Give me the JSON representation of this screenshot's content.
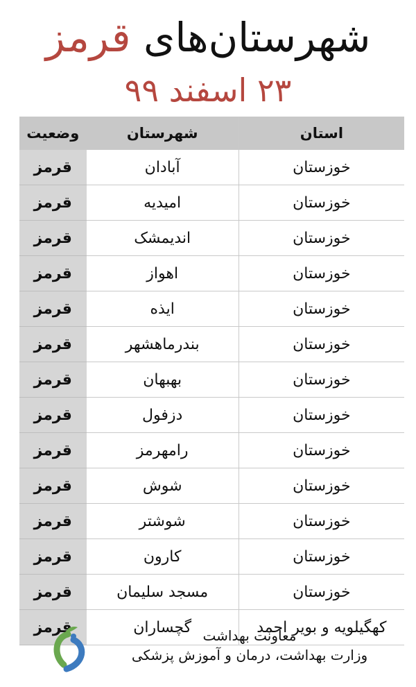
{
  "title": {
    "main": "شهرستان‌های",
    "highlight": "قرمز"
  },
  "date": "۲۳ اسفند ۹۹",
  "table": {
    "headers": {
      "province": "استان",
      "city": "شهرستان",
      "status": "وضعیت"
    },
    "rows": [
      {
        "province": "خوزستان",
        "city": "آبادان",
        "status": "قرمز"
      },
      {
        "province": "خوزستان",
        "city": "امیدیه",
        "status": "قرمز"
      },
      {
        "province": "خوزستان",
        "city": "اندیمشک",
        "status": "قرمز"
      },
      {
        "province": "خوزستان",
        "city": "اهواز",
        "status": "قرمز"
      },
      {
        "province": "خوزستان",
        "city": "ایذه",
        "status": "قرمز"
      },
      {
        "province": "خوزستان",
        "city": "بندرماهشهر",
        "status": "قرمز"
      },
      {
        "province": "خوزستان",
        "city": "بهبهان",
        "status": "قرمز"
      },
      {
        "province": "خوزستان",
        "city": "دزفول",
        "status": "قرمز"
      },
      {
        "province": "خوزستان",
        "city": "رامهرمز",
        "status": "قرمز"
      },
      {
        "province": "خوزستان",
        "city": "شوش",
        "status": "قرمز"
      },
      {
        "province": "خوزستان",
        "city": "شوشتر",
        "status": "قرمز"
      },
      {
        "province": "خوزستان",
        "city": "کارون",
        "status": "قرمز"
      },
      {
        "province": "خوزستان",
        "city": "مسجد سلیمان",
        "status": "قرمز"
      },
      {
        "province": "کهگیلویه و بویر احمد",
        "city": "گچساران",
        "status": "قرمز"
      }
    ]
  },
  "footer": {
    "line1": "معاونت بهداشت",
    "line2": "وزارت بهداشت، درمان و آموزش پزشکی"
  },
  "colors": {
    "accent": "#b5473f",
    "header_bg": "#c8c8c8",
    "status_bg": "#d6d6d6"
  },
  "logo": {
    "icon": "ministry-of-health-logo"
  }
}
